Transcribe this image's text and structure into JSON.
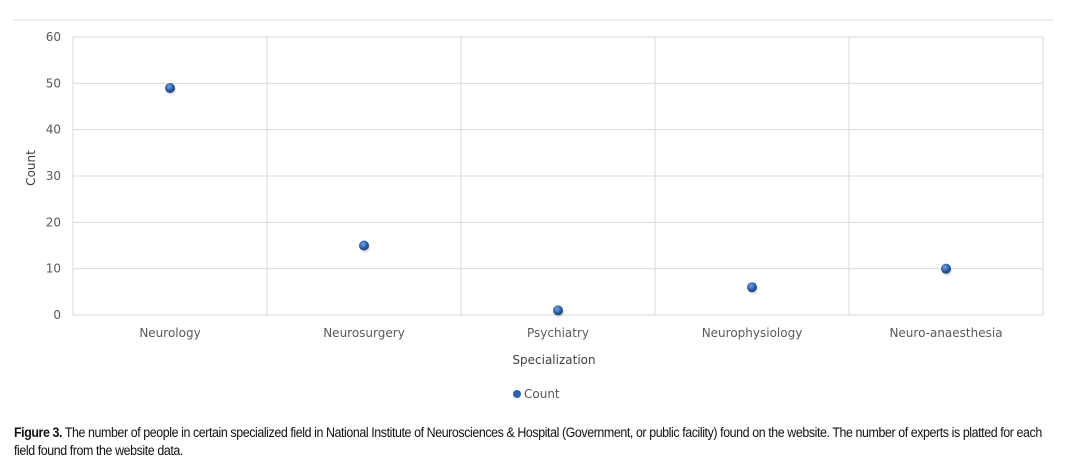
{
  "chart_data": {
    "type": "scatter",
    "categories": [
      "Neurology",
      "Neurosurgery",
      "Psychiatry",
      "Neurophysiology",
      "Neuro-anaesthesia"
    ],
    "series": [
      {
        "name": "Count",
        "values": [
          49,
          15,
          1,
          6,
          10
        ],
        "color": "#2E5FA8"
      }
    ],
    "xlabel": "Specialization",
    "ylabel": "Count",
    "ylim": [
      0,
      60
    ],
    "yticks": [
      0,
      10,
      20,
      30,
      40,
      50,
      60
    ],
    "grid": true,
    "legend": "bottom"
  },
  "caption": {
    "label": "Figure 3.",
    "text": " The number of people in certain specialized field in National Institute of Neurosciences & Hospital (Government, or public facility) found on the website. The number of experts is platted for each field found from the website data."
  }
}
